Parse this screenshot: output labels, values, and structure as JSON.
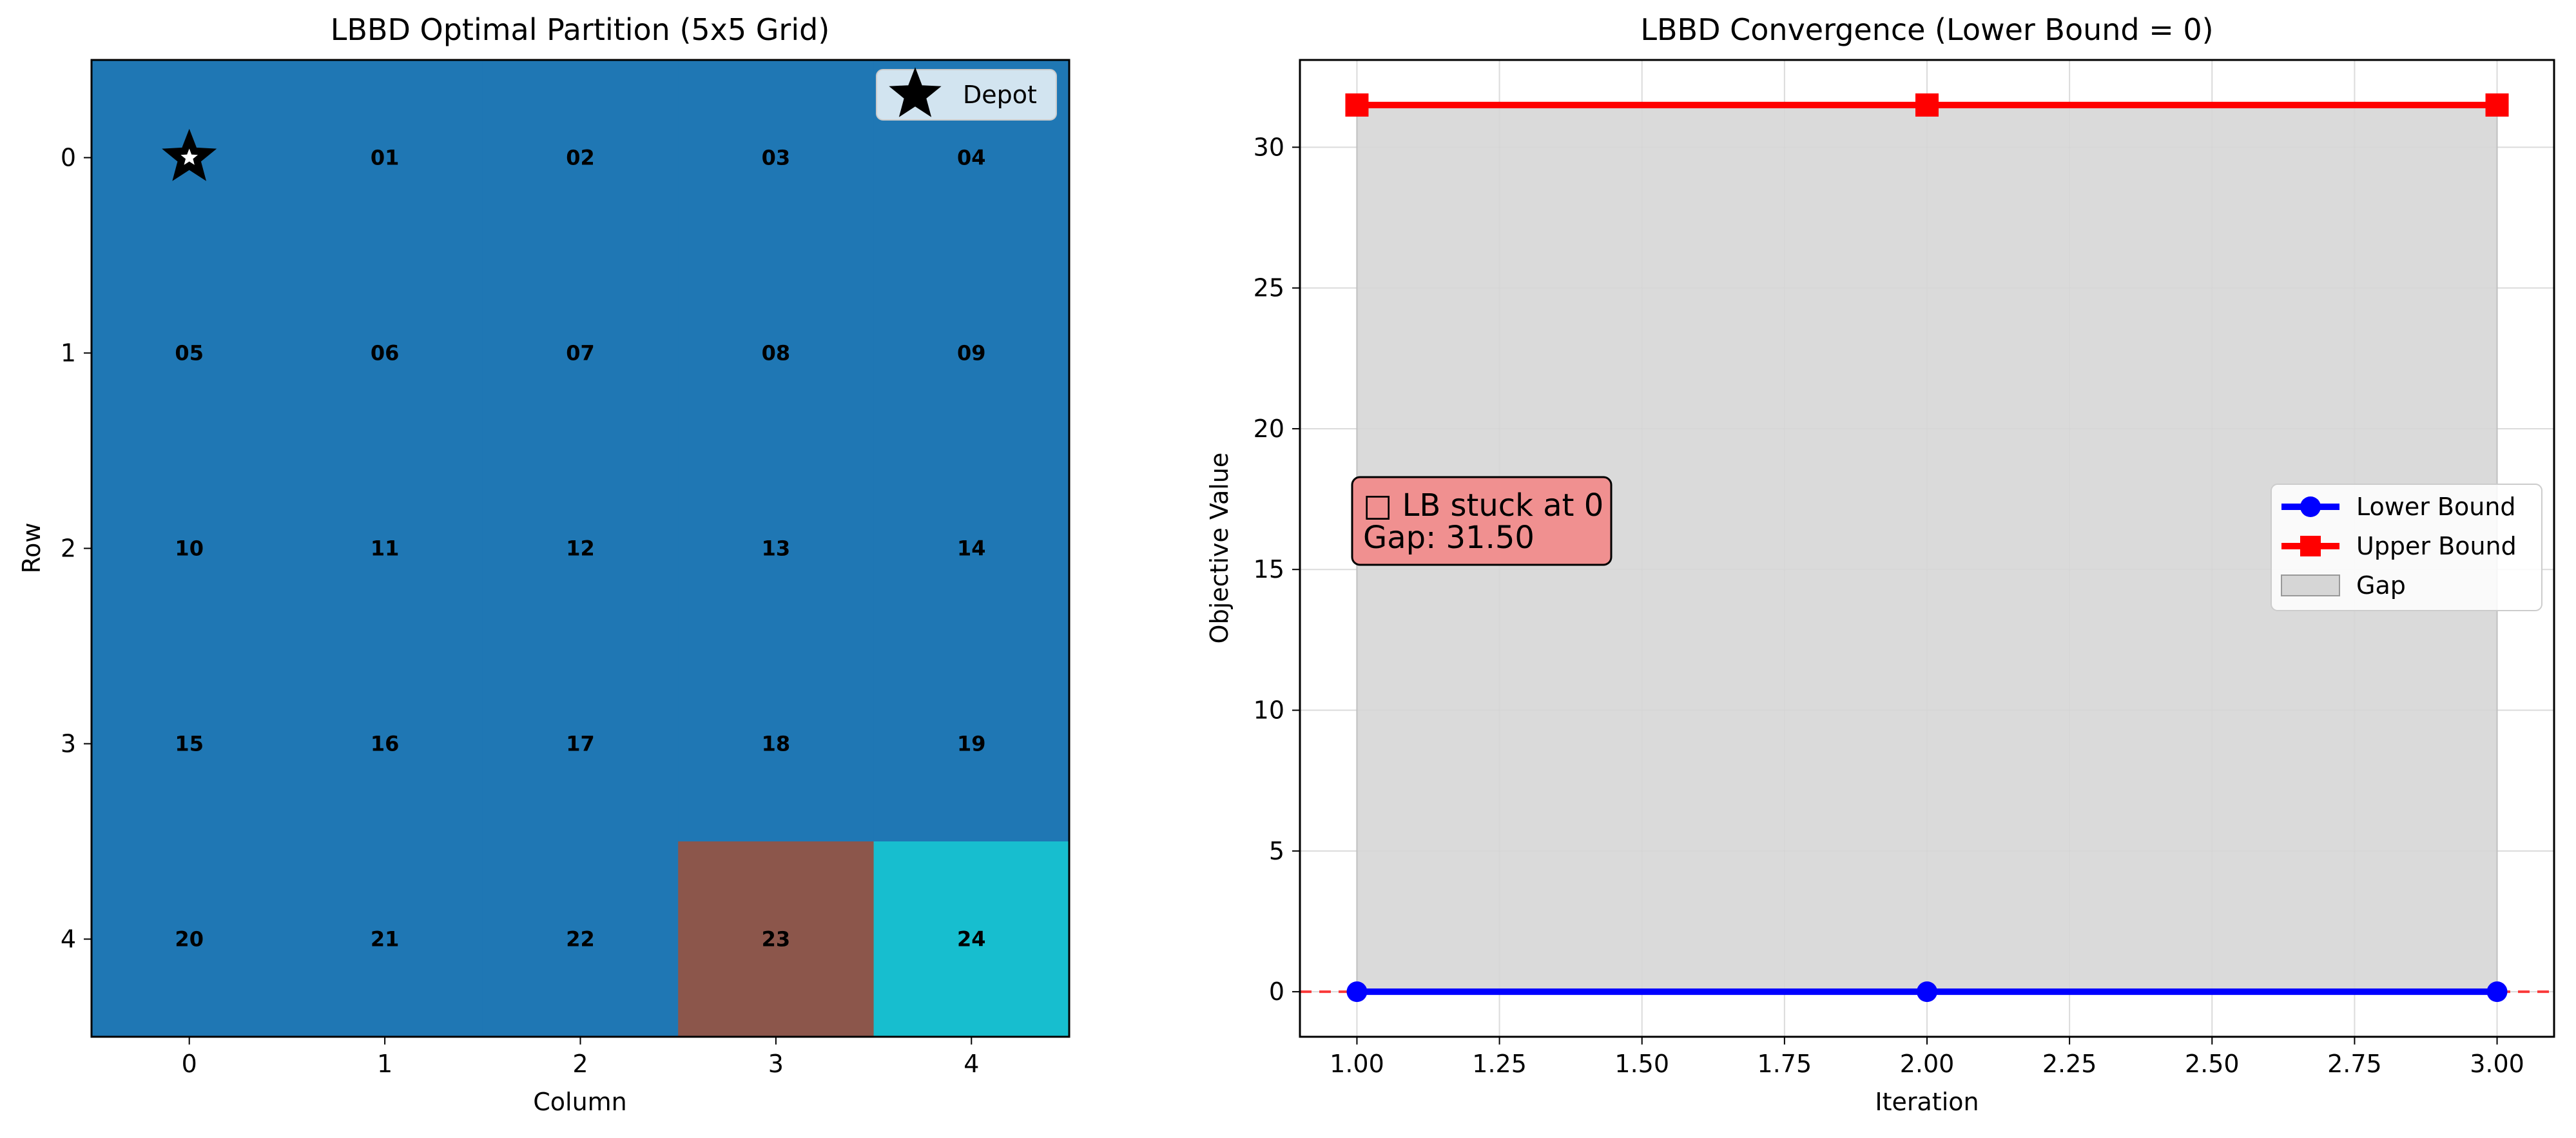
{
  "chart_data": [
    {
      "type": "heatmap",
      "title": "LBBD Optimal Partition (5x5 Grid)",
      "xlabel": "Column",
      "ylabel": "Row",
      "xticks": [
        0,
        1,
        2,
        3,
        4
      ],
      "yticks": [
        0,
        1,
        2,
        3,
        4
      ],
      "grid_rows": 5,
      "grid_cols": 5,
      "cell_labels": [
        [
          "",
          "01",
          "02",
          "03",
          "04"
        ],
        [
          "05",
          "06",
          "07",
          "08",
          "09"
        ],
        [
          "10",
          "11",
          "12",
          "13",
          "14"
        ],
        [
          "15",
          "16",
          "17",
          "18",
          "19"
        ],
        [
          "20",
          "21",
          "22",
          "23",
          "24"
        ]
      ],
      "partition": [
        [
          0,
          0,
          0,
          0,
          0
        ],
        [
          0,
          0,
          0,
          0,
          0
        ],
        [
          0,
          0,
          0,
          0,
          0
        ],
        [
          0,
          0,
          0,
          0,
          0
        ],
        [
          0,
          0,
          0,
          1,
          2
        ]
      ],
      "partition_colors": [
        "#1f77b4",
        "#8c564b",
        "#17becf"
      ],
      "depot": {
        "row": 0,
        "col": 0,
        "label": "Depot",
        "marker": "star-icon"
      },
      "legend_position": "upper-right"
    },
    {
      "type": "line",
      "title": "LBBD Convergence (Lower Bound = 0)",
      "xlabel": "Iteration",
      "ylabel": "Objective Value",
      "xlim": [
        0.9,
        3.1
      ],
      "ylim": [
        -1.6,
        33.1
      ],
      "xticks": [
        "1.00",
        "1.25",
        "1.50",
        "1.75",
        "2.00",
        "2.25",
        "2.50",
        "2.75",
        "3.00"
      ],
      "yticks": [
        "0",
        "5",
        "10",
        "15",
        "20",
        "25",
        "30"
      ],
      "x": [
        1,
        2,
        3
      ],
      "series": [
        {
          "name": "Lower Bound",
          "values": [
            0,
            0,
            0
          ],
          "color": "#0000ff",
          "marker": "circle"
        },
        {
          "name": "Upper Bound",
          "values": [
            31.5,
            31.5,
            31.5
          ],
          "color": "#ff0000",
          "marker": "square"
        }
      ],
      "gap_fill": {
        "name": "Gap",
        "color": "#d6d6d6"
      },
      "reference_line": {
        "y": 0,
        "color": "#ff0000",
        "style": "dashed"
      },
      "annotation": {
        "line1": "□ LB stuck at 0",
        "line2": "Gap: 31.50",
        "background": "#f09090"
      },
      "grid": true,
      "legend_position": "center-right"
    }
  ]
}
